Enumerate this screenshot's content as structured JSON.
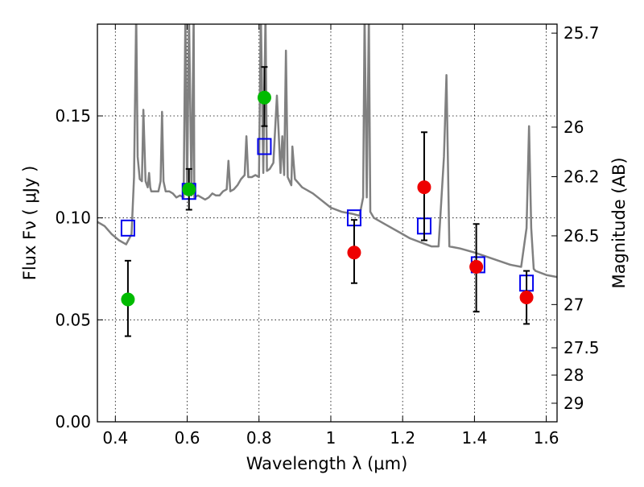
{
  "chart_data": {
    "type": "scatter",
    "title": "",
    "xlabel": "Wavelength  λ (μm)",
    "ylabel": "Flux  Fν  ( μJy )",
    "ylabel_right": "Magnitude (AB)",
    "xlim": [
      0.35,
      1.63
    ],
    "ylim": [
      0.0,
      0.195
    ],
    "grid": true,
    "grid_style": "dotted",
    "x_ticks": [
      {
        "value": 0.4,
        "label": "0.4"
      },
      {
        "value": 0.6,
        "label": "0.6"
      },
      {
        "value": 0.8,
        "label": "0.8"
      },
      {
        "value": 1.0,
        "label": "1"
      },
      {
        "value": 1.2,
        "label": "1.2"
      },
      {
        "value": 1.4,
        "label": "1.4"
      },
      {
        "value": 1.6,
        "label": "1.6"
      }
    ],
    "y_ticks": [
      {
        "value": 0.0,
        "label": "0.00"
      },
      {
        "value": 0.05,
        "label": "0.05"
      },
      {
        "value": 0.1,
        "label": "0.10"
      },
      {
        "value": 0.15,
        "label": "0.15"
      }
    ],
    "right_ticks": [
      {
        "flux": 0.1906,
        "label": "25.7"
      },
      {
        "flux": 0.1445,
        "label": "26"
      },
      {
        "flux": 0.1202,
        "label": "26.2"
      },
      {
        "flux": 0.0912,
        "label": "26.5"
      },
      {
        "flux": 0.0575,
        "label": "27"
      },
      {
        "flux": 0.0363,
        "label": "27.5"
      },
      {
        "flux": 0.0229,
        "label": "28"
      },
      {
        "flux": 0.0091,
        "label": "29"
      }
    ],
    "colors": {
      "spectrum": "#808080",
      "model_box": "#0000ee",
      "green_point": "#00bb00",
      "red_point": "#ee0000",
      "errorbar": "#000000"
    },
    "series": [
      {
        "kind": "model_spectrum",
        "x": [
          0.35,
          0.37,
          0.39,
          0.41,
          0.43,
          0.445,
          0.452,
          0.458,
          0.462,
          0.468,
          0.474,
          0.478,
          0.484,
          0.49,
          0.494,
          0.497,
          0.5,
          0.51,
          0.52,
          0.526,
          0.53,
          0.534,
          0.54,
          0.55,
          0.56,
          0.57,
          0.58,
          0.59,
          0.595,
          0.6,
          0.605,
          0.612,
          0.618,
          0.62,
          0.63,
          0.65,
          0.66,
          0.67,
          0.68,
          0.69,
          0.7,
          0.71,
          0.715,
          0.72,
          0.73,
          0.74,
          0.75,
          0.76,
          0.765,
          0.77,
          0.78,
          0.79,
          0.8,
          0.805,
          0.812,
          0.818,
          0.822,
          0.83,
          0.84,
          0.85,
          0.86,
          0.865,
          0.87,
          0.875,
          0.88,
          0.89,
          0.893,
          0.9,
          0.92,
          0.95,
          1.0,
          1.03,
          1.06,
          1.08,
          1.09,
          1.094,
          1.1,
          1.106,
          1.11,
          1.12,
          1.15,
          1.2,
          1.22,
          1.25,
          1.28,
          1.3,
          1.315,
          1.322,
          1.33,
          1.36,
          1.4,
          1.45,
          1.5,
          1.53,
          1.545,
          1.552,
          1.558,
          1.565,
          1.57,
          1.6,
          1.63
        ],
        "y": [
          0.098,
          0.096,
          0.092,
          0.089,
          0.087,
          0.092,
          0.12,
          0.2,
          0.13,
          0.119,
          0.118,
          0.153,
          0.118,
          0.115,
          0.122,
          0.115,
          0.113,
          0.113,
          0.113,
          0.118,
          0.152,
          0.118,
          0.113,
          0.113,
          0.112,
          0.11,
          0.111,
          0.11,
          0.2,
          0.112,
          0.2,
          0.111,
          0.2,
          0.11,
          0.111,
          0.109,
          0.11,
          0.112,
          0.111,
          0.111,
          0.113,
          0.114,
          0.128,
          0.113,
          0.114,
          0.116,
          0.119,
          0.121,
          0.14,
          0.12,
          0.12,
          0.121,
          0.12,
          0.2,
          0.122,
          0.2,
          0.123,
          0.124,
          0.127,
          0.16,
          0.122,
          0.14,
          0.121,
          0.182,
          0.12,
          0.116,
          0.135,
          0.119,
          0.115,
          0.112,
          0.105,
          0.103,
          0.102,
          0.101,
          0.11,
          0.2,
          0.11,
          0.2,
          0.103,
          0.1,
          0.097,
          0.092,
          0.09,
          0.088,
          0.086,
          0.086,
          0.13,
          0.17,
          0.086,
          0.085,
          0.083,
          0.08,
          0.077,
          0.076,
          0.095,
          0.145,
          0.095,
          0.075,
          0.074,
          0.072,
          0.071
        ]
      },
      {
        "kind": "model_photometry",
        "marker": "open-square",
        "x": [
          0.435,
          0.605,
          0.815,
          1.065,
          1.26,
          1.41,
          1.545
        ],
        "y": [
          0.095,
          0.113,
          0.135,
          0.1,
          0.096,
          0.077,
          0.068
        ]
      },
      {
        "kind": "observed_green",
        "marker": "filled-circle",
        "x": [
          0.435,
          0.605,
          0.815
        ],
        "y": [
          0.06,
          0.114,
          0.159
        ],
        "err_low": [
          0.042,
          0.104,
          0.145
        ],
        "err_high": [
          0.079,
          0.124,
          0.174
        ]
      },
      {
        "kind": "observed_red",
        "marker": "filled-circle",
        "x": [
          1.065,
          1.26,
          1.405,
          1.545
        ],
        "y": [
          0.083,
          0.115,
          0.076,
          0.061
        ],
        "err_low": [
          0.068,
          0.089,
          0.054,
          0.048
        ],
        "err_high": [
          0.099,
          0.142,
          0.097,
          0.074
        ]
      }
    ]
  }
}
